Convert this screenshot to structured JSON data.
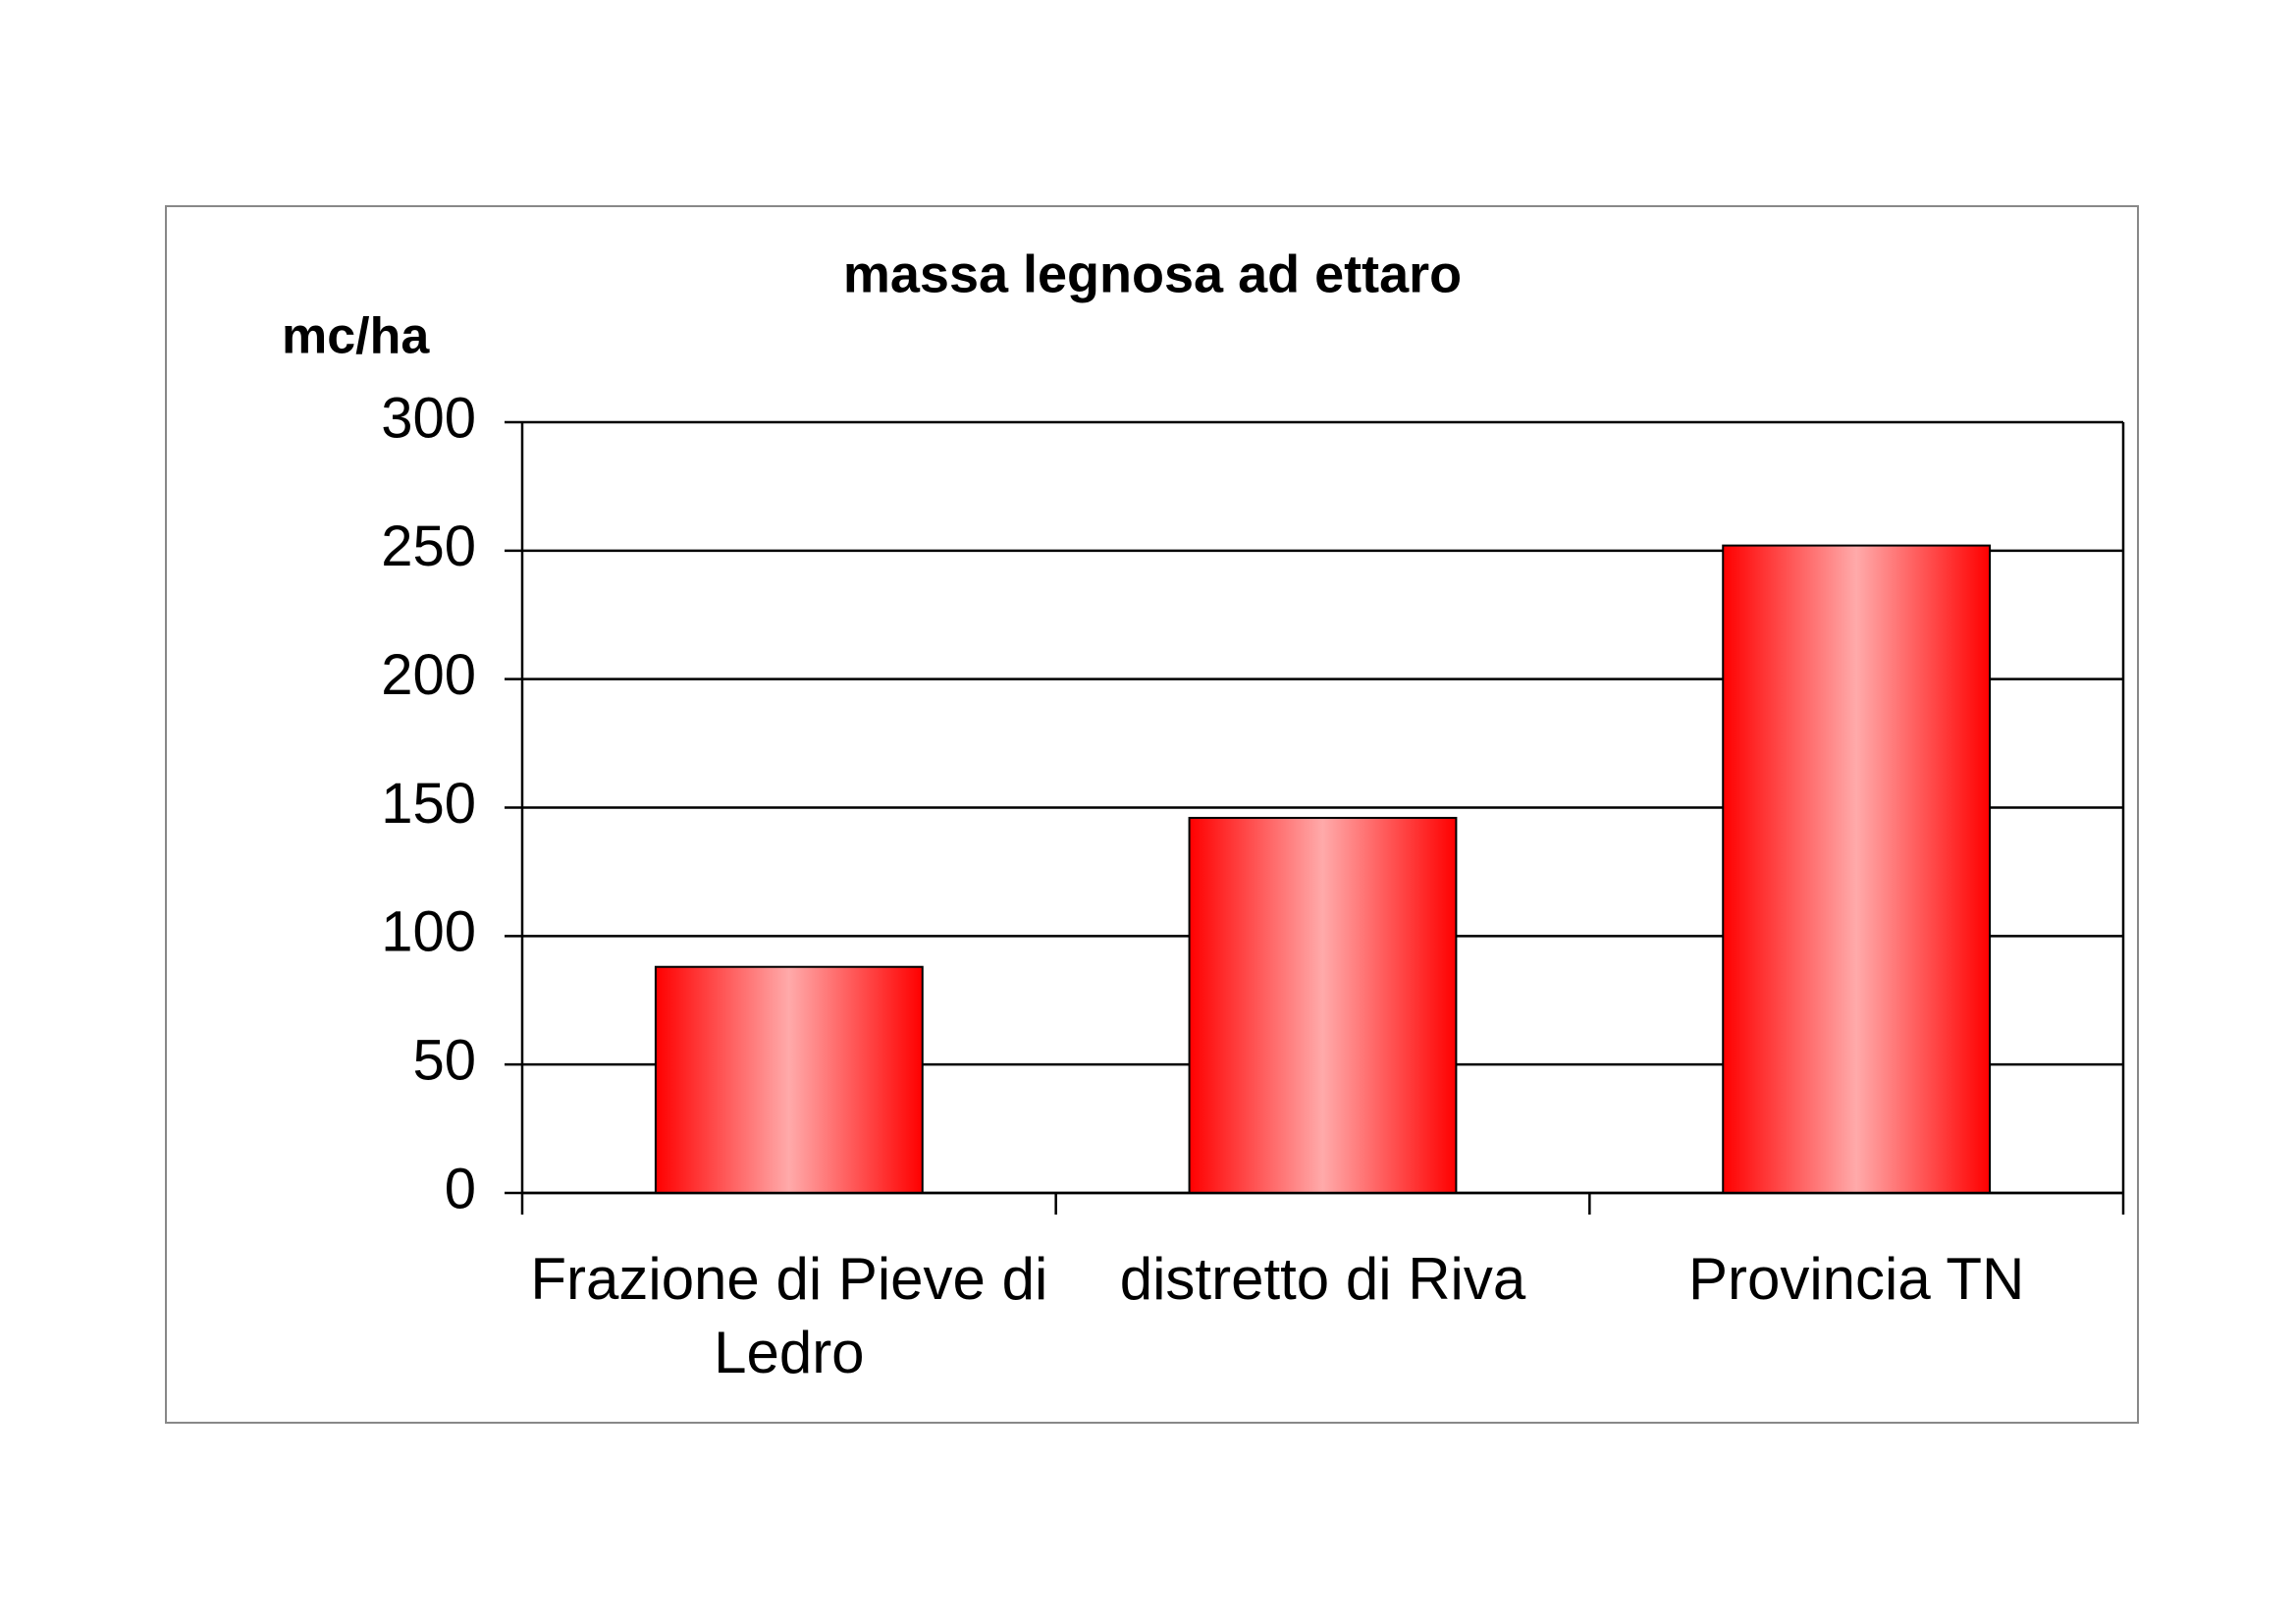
{
  "chart_data": {
    "type": "bar",
    "title": "massa legnosa ad ettaro",
    "y_label": "mc/ha",
    "categories": [
      "Frazione di Pieve di Ledro",
      "distretto di Riva",
      "Provincia TN"
    ],
    "values": [
      88,
      146,
      252
    ],
    "color": "#ff0000",
    "ylim": [
      0,
      300
    ],
    "yticks": [
      0,
      50,
      100,
      150,
      200,
      250,
      300
    ],
    "grid": true
  }
}
